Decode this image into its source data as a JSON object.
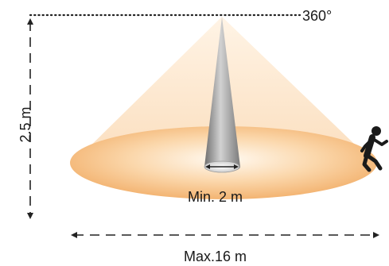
{
  "labels": {
    "coverage_angle": "360°",
    "mounting_height": "2.5 m",
    "min_range": "Min. 2 m",
    "max_range": "Max.16 m"
  },
  "icons": {
    "person": "walking-person-icon"
  },
  "colors": {
    "cone_light": "#fbe3c7",
    "floor_center": "#fffaf2",
    "floor_edge": "#f3b472",
    "beam_dark": "#6e6e6e",
    "beam_light": "#d2d2d2",
    "arrows": "#222222"
  }
}
